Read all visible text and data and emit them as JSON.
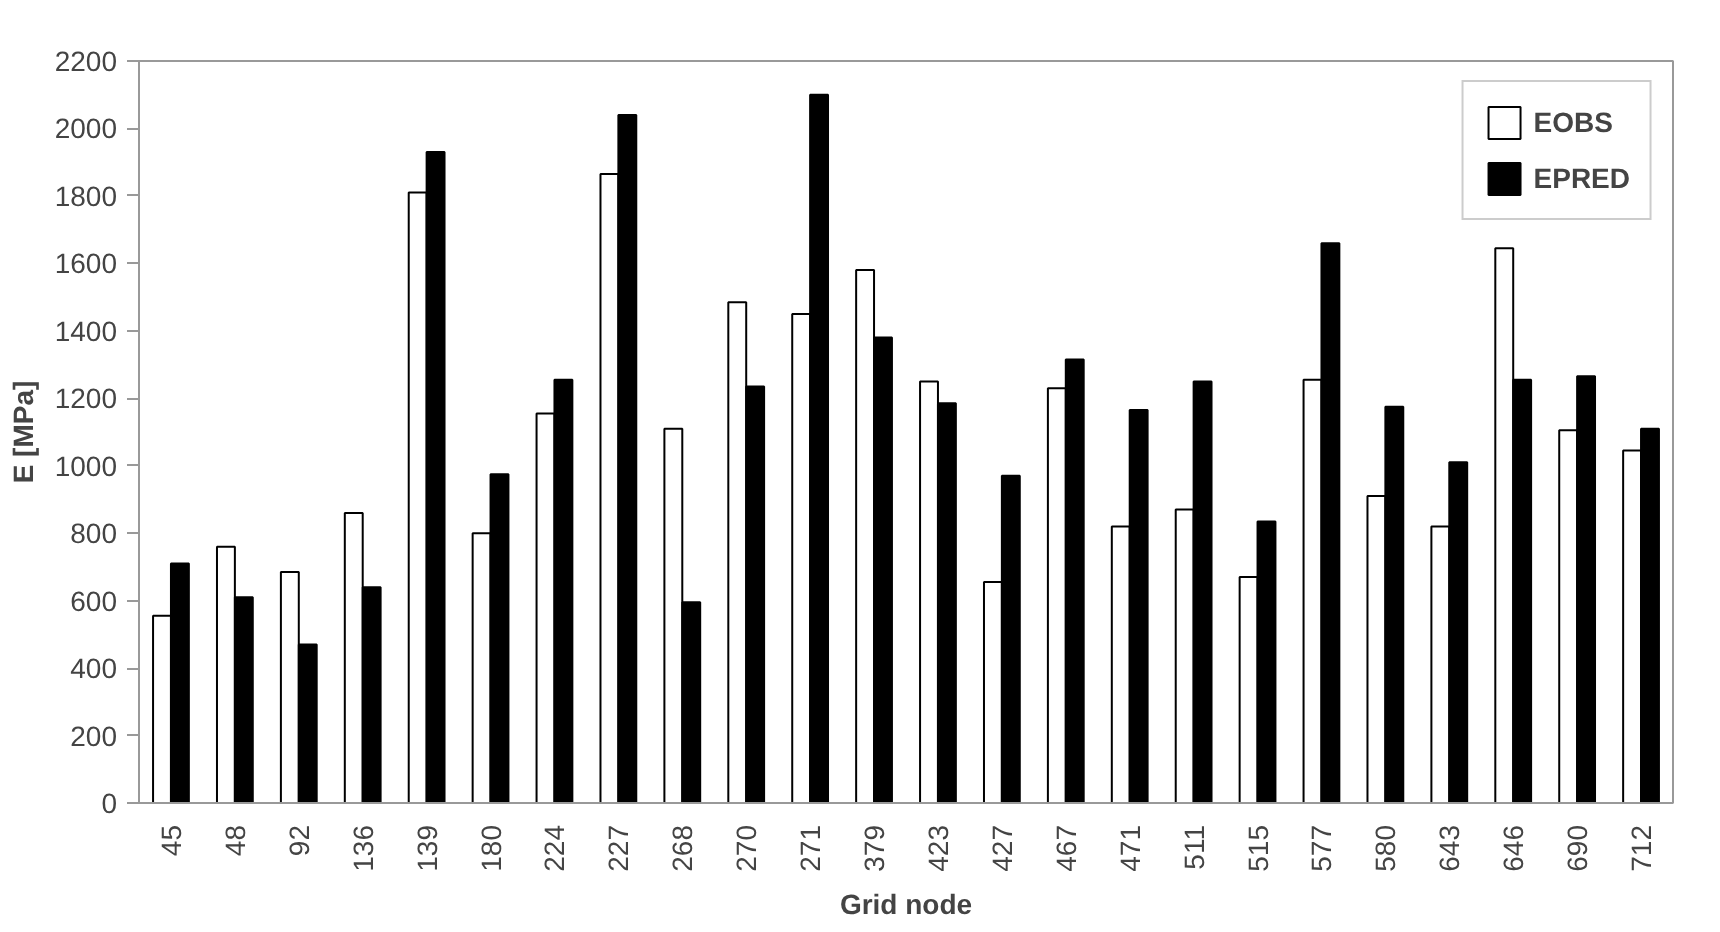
{
  "chart_data": {
    "type": "bar",
    "xlabel": "Grid node",
    "ylabel": "E [MPa]",
    "categories": [
      "45",
      "48",
      "92",
      "136",
      "139",
      "180",
      "224",
      "227",
      "268",
      "270",
      "271",
      "379",
      "423",
      "427",
      "467",
      "471",
      "511",
      "515",
      "577",
      "580",
      "643",
      "646",
      "690",
      "712"
    ],
    "series": [
      {
        "name": "EOBS",
        "color": "#ffffff",
        "values": [
          555,
          760,
          685,
          860,
          1810,
          800,
          1155,
          1865,
          1110,
          1485,
          1450,
          1580,
          1250,
          655,
          1230,
          820,
          870,
          670,
          1255,
          910,
          820,
          1645,
          1105,
          1045
        ]
      },
      {
        "name": "EPRED",
        "color": "#000000",
        "values": [
          710,
          610,
          470,
          640,
          1930,
          975,
          1255,
          2040,
          595,
          1235,
          2100,
          1380,
          1185,
          970,
          1315,
          1165,
          1250,
          835,
          1660,
          1175,
          1010,
          1255,
          1265,
          1110
        ]
      }
    ],
    "ylim": [
      0,
      2200
    ],
    "yticks": [
      0,
      200,
      400,
      600,
      800,
      1000,
      1200,
      1400,
      1600,
      1800,
      2000,
      2200
    ],
    "grid": false,
    "legend": "top right"
  }
}
